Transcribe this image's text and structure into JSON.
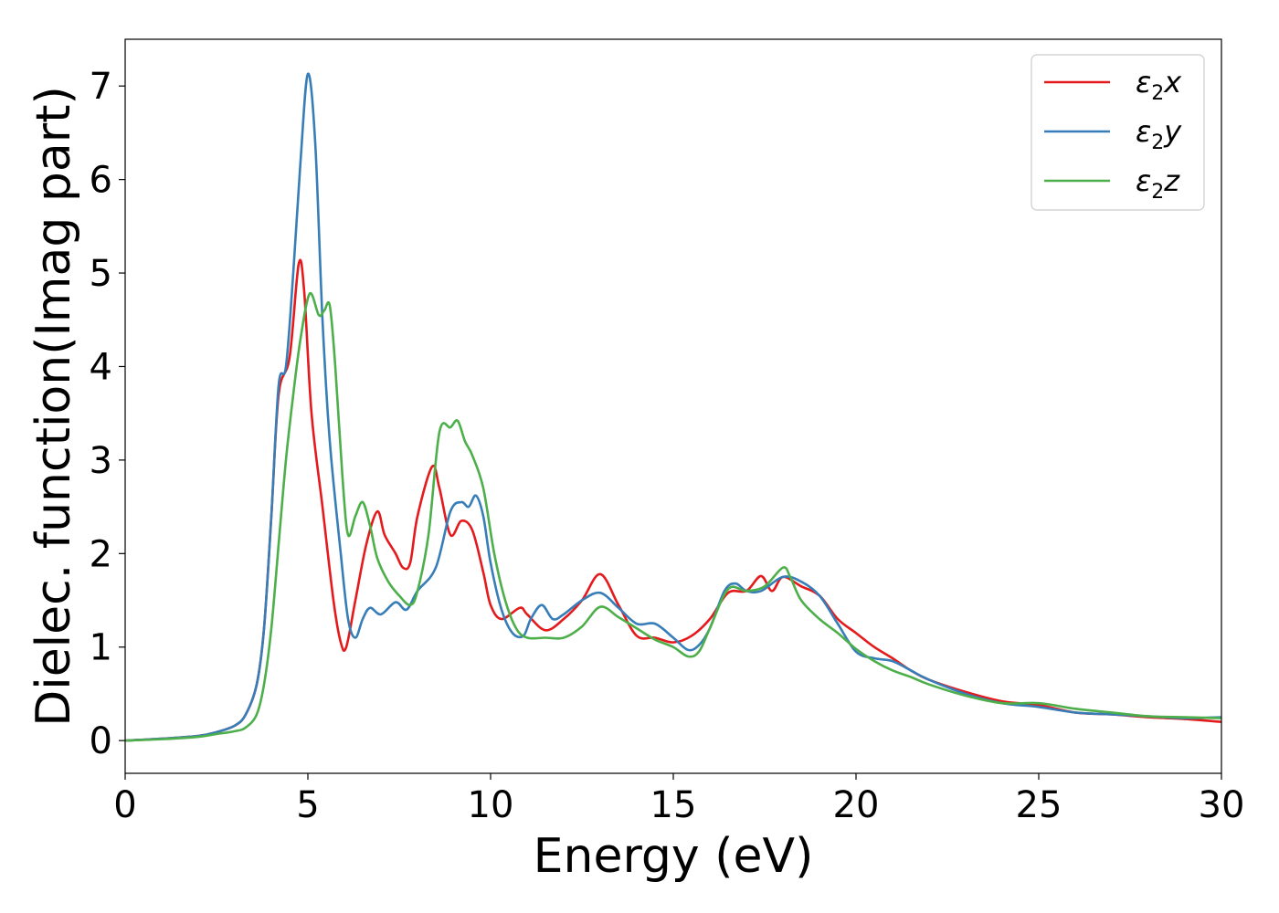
{
  "chart_data": {
    "type": "line",
    "title": "",
    "xlabel": "Energy (eV)",
    "ylabel": "Dielec. function(Imag part)",
    "xlim": [
      0,
      30
    ],
    "ylim": [
      -0.35,
      7.5
    ],
    "xticks": [
      "0",
      "5",
      "10",
      "15",
      "20",
      "25",
      "30"
    ],
    "yticks": [
      "0",
      "1",
      "2",
      "3",
      "4",
      "5",
      "6",
      "7"
    ],
    "grid": false,
    "legend_position": "top-right",
    "series": [
      {
        "name": "ε₂x",
        "legend_base": "ε",
        "legend_sub": "2",
        "legend_var": "x",
        "color": "#e41a1c",
        "x": [
          0,
          1,
          2,
          2.5,
          3,
          3.3,
          3.6,
          3.8,
          4.0,
          4.2,
          4.5,
          4.75,
          4.9,
          5.1,
          5.4,
          5.7,
          5.9,
          6.05,
          6.3,
          6.6,
          6.9,
          7.1,
          7.4,
          7.6,
          7.8,
          8.0,
          8.4,
          8.6,
          8.9,
          9.2,
          9.5,
          9.8,
          10.0,
          10.3,
          10.8,
          11.0,
          11.5,
          12.0,
          12.5,
          13.0,
          13.5,
          14.0,
          14.5,
          15.0,
          15.5,
          16.0,
          16.5,
          17.0,
          17.4,
          17.7,
          18.0,
          18.5,
          19.0,
          19.5,
          20.0,
          20.5,
          21.0,
          21.5,
          22.0,
          23.0,
          24.0,
          25.0,
          26.0,
          27.0,
          28.0,
          29.0,
          30.0
        ],
        "y": [
          0,
          0.02,
          0.05,
          0.09,
          0.16,
          0.28,
          0.6,
          1.2,
          2.4,
          3.7,
          4.1,
          5.1,
          4.8,
          3.5,
          2.5,
          1.5,
          1.05,
          1.0,
          1.5,
          2.1,
          2.45,
          2.2,
          2.0,
          1.85,
          1.9,
          2.4,
          2.93,
          2.7,
          2.2,
          2.35,
          2.25,
          1.8,
          1.45,
          1.3,
          1.42,
          1.35,
          1.18,
          1.3,
          1.5,
          1.78,
          1.45,
          1.12,
          1.1,
          1.05,
          1.12,
          1.3,
          1.58,
          1.6,
          1.76,
          1.6,
          1.75,
          1.65,
          1.55,
          1.3,
          1.15,
          1.0,
          0.88,
          0.75,
          0.65,
          0.52,
          0.42,
          0.38,
          0.3,
          0.28,
          0.25,
          0.23,
          0.2
        ]
      },
      {
        "name": "ε₂y",
        "legend_base": "ε",
        "legend_sub": "2",
        "legend_var": "y",
        "color": "#377eb8",
        "x": [
          0,
          1,
          2,
          2.5,
          3,
          3.3,
          3.6,
          3.8,
          4.0,
          4.2,
          4.4,
          4.6,
          4.8,
          5.0,
          5.2,
          5.4,
          5.6,
          5.9,
          6.1,
          6.3,
          6.5,
          6.7,
          7.0,
          7.4,
          7.7,
          8.0,
          8.5,
          8.9,
          9.2,
          9.4,
          9.6,
          9.8,
          10.0,
          10.3,
          10.6,
          10.9,
          11.1,
          11.4,
          11.7,
          12.0,
          12.5,
          13.0,
          13.5,
          14.0,
          14.5,
          15.0,
          15.4,
          15.7,
          16.0,
          16.4,
          16.7,
          17.0,
          17.4,
          18.0,
          18.5,
          19.0,
          19.5,
          20.0,
          20.5,
          21.0,
          21.5,
          22.0,
          23.0,
          24.0,
          25.0,
          26.0,
          27.0,
          28.0,
          29.0,
          30.0
        ],
        "y": [
          0,
          0.02,
          0.05,
          0.09,
          0.16,
          0.28,
          0.6,
          1.2,
          2.4,
          3.8,
          4.0,
          5.0,
          6.2,
          7.13,
          6.4,
          4.5,
          3.2,
          2.0,
          1.3,
          1.1,
          1.3,
          1.42,
          1.35,
          1.48,
          1.4,
          1.6,
          1.85,
          2.45,
          2.55,
          2.5,
          2.62,
          2.4,
          1.9,
          1.4,
          1.15,
          1.12,
          1.3,
          1.45,
          1.3,
          1.35,
          1.5,
          1.58,
          1.42,
          1.25,
          1.25,
          1.1,
          0.97,
          1.02,
          1.2,
          1.6,
          1.68,
          1.6,
          1.6,
          1.75,
          1.7,
          1.55,
          1.25,
          0.95,
          0.88,
          0.85,
          0.75,
          0.65,
          0.5,
          0.4,
          0.36,
          0.3,
          0.28,
          0.26,
          0.24,
          0.25
        ]
      },
      {
        "name": "ε₂z",
        "legend_base": "ε",
        "legend_sub": "2",
        "legend_var": "z",
        "color": "#4daf4a",
        "x": [
          0,
          1,
          2,
          2.5,
          3,
          3.3,
          3.6,
          3.8,
          4.0,
          4.2,
          4.4,
          4.6,
          4.8,
          5.05,
          5.3,
          5.45,
          5.6,
          5.75,
          5.95,
          6.1,
          6.3,
          6.5,
          6.7,
          6.9,
          7.2,
          7.5,
          7.8,
          8.0,
          8.3,
          8.6,
          8.9,
          9.1,
          9.3,
          9.5,
          9.8,
          10.1,
          10.4,
          10.7,
          11.0,
          11.5,
          12.0,
          12.5,
          13.0,
          13.5,
          14.0,
          14.5,
          15.0,
          15.4,
          15.7,
          16.0,
          16.5,
          17.0,
          17.5,
          18.0,
          18.2,
          18.5,
          19.0,
          19.5,
          20.0,
          20.5,
          21.0,
          21.5,
          22.0,
          23.0,
          24.0,
          25.0,
          26.0,
          27.0,
          28.0,
          29.0,
          30.0
        ],
        "y": [
          0,
          0.015,
          0.04,
          0.07,
          0.1,
          0.14,
          0.28,
          0.6,
          1.2,
          2.1,
          3.0,
          3.7,
          4.3,
          4.78,
          4.55,
          4.6,
          4.65,
          4.0,
          2.8,
          2.2,
          2.4,
          2.55,
          2.3,
          1.95,
          1.7,
          1.55,
          1.45,
          1.6,
          2.2,
          3.3,
          3.35,
          3.42,
          3.2,
          3.05,
          2.7,
          2.0,
          1.5,
          1.2,
          1.1,
          1.1,
          1.1,
          1.22,
          1.43,
          1.32,
          1.2,
          1.08,
          1.0,
          0.9,
          0.95,
          1.2,
          1.62,
          1.6,
          1.65,
          1.85,
          1.75,
          1.5,
          1.3,
          1.15,
          0.98,
          0.85,
          0.75,
          0.68,
          0.6,
          0.48,
          0.4,
          0.4,
          0.34,
          0.3,
          0.26,
          0.25,
          0.24
        ]
      }
    ]
  }
}
